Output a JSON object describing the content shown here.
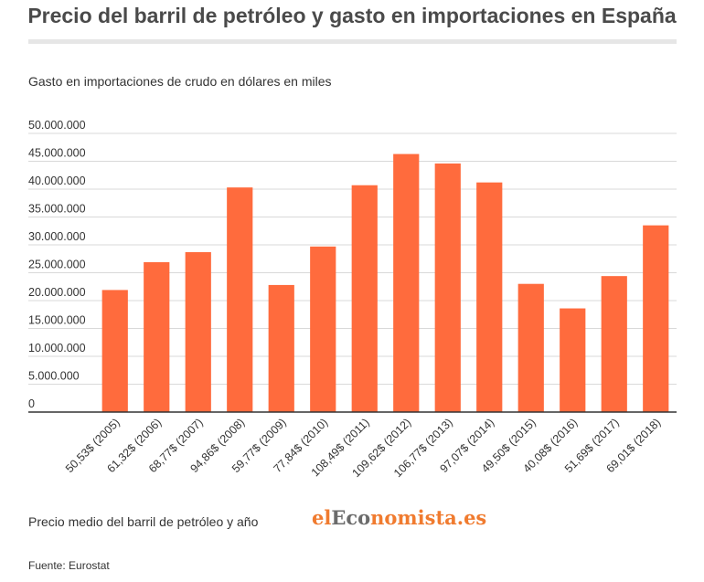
{
  "header": {
    "title": "Precio del barril de petróleo y gasto en importaciones en España",
    "subtitle": "Gasto en importaciones de crudo en dólares en miles"
  },
  "footer": {
    "xaxis_label": "Precio medio del barril de petróleo y año",
    "brand_part1": "el",
    "brand_part2": "Eco",
    "brand_part3": "nomista.es",
    "source": "Fuente: Eurostat"
  },
  "colors": {
    "bar": "#ff6b3d",
    "grid": "#d9d9d9",
    "axis": "#333333"
  },
  "chart_data": {
    "type": "bar",
    "title": "Precio del barril de petróleo y gasto en importaciones en España",
    "ylabel": "Gasto en importaciones de crudo en dólares en miles",
    "xlabel": "Precio medio del barril de petróleo y año",
    "ylim": [
      0,
      50000000
    ],
    "yticks": [
      0,
      5000000,
      10000000,
      15000000,
      20000000,
      25000000,
      30000000,
      35000000,
      40000000,
      45000000,
      50000000
    ],
    "ytick_labels": [
      "0",
      "5.000.000",
      "10.000.000",
      "15.000.000",
      "20.000.000",
      "25.000.000",
      "30.000.000",
      "35.000.000",
      "40.000.000",
      "45.000.000",
      "50.000.000"
    ],
    "grid": true,
    "categories": [
      "50,53$ (2005)",
      "61,32$ (2006)",
      "68,77$ (2007)",
      "94,86$ (2008)",
      "59,77$ (2009)",
      "77,84$ (2010)",
      "108,49$ (2011)",
      "109,62$ (2012)",
      "106,77$ (2013)",
      "97,07$ (2014)",
      "49,50$ (2015)",
      "40,08$ (2016)",
      "51,69$ (2017)",
      "69,01$ (2018)"
    ],
    "values": [
      21900000,
      26900000,
      28700000,
      40300000,
      22800000,
      29700000,
      40700000,
      46300000,
      44600000,
      41200000,
      23000000,
      18600000,
      24400000,
      33500000
    ]
  }
}
